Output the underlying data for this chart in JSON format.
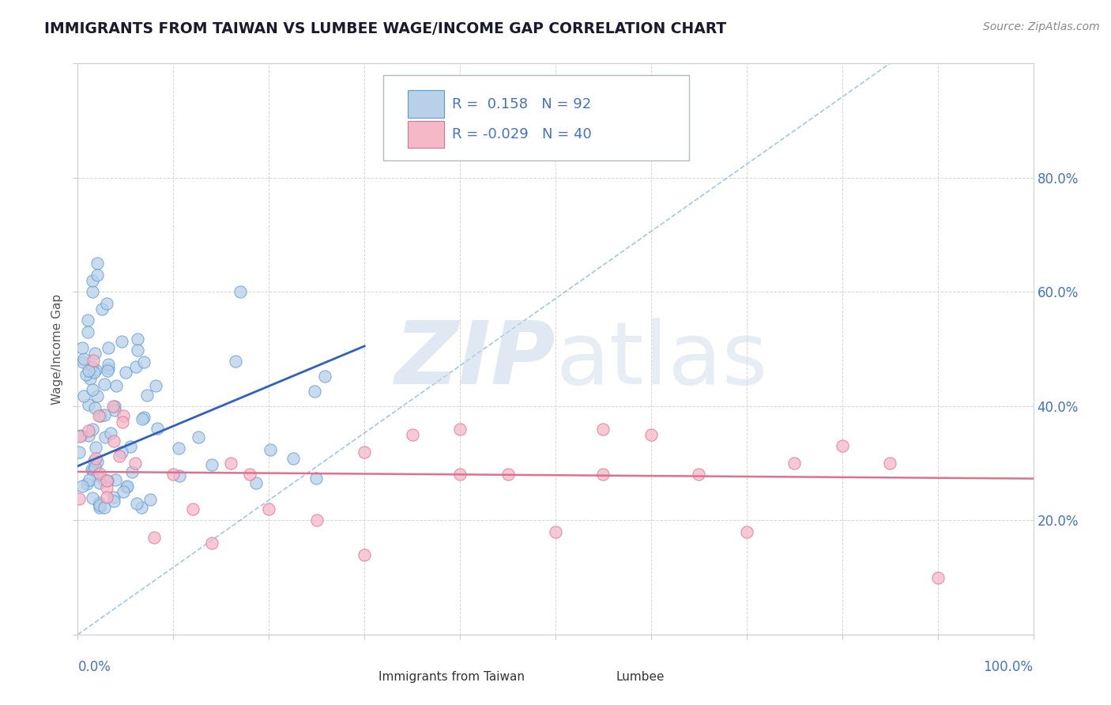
{
  "title": "IMMIGRANTS FROM TAIWAN VS LUMBEE WAGE/INCOME GAP CORRELATION CHART",
  "source": "Source: ZipAtlas.com",
  "ylabel": "Wage/Income Gap",
  "right_yticks": [
    0.2,
    0.4,
    0.6,
    0.8
  ],
  "right_yticklabels": [
    "20.0%",
    "40.0%",
    "60.0%",
    "80.0%"
  ],
  "taiwan_color": "#b8d0e8",
  "taiwan_edge_color": "#5b9bd5",
  "lumbee_color": "#f4b8c8",
  "lumbee_edge_color": "#e07090",
  "taiwan_line_color": "#3060c0",
  "lumbee_line_color": "#e07090",
  "ref_line_color": "#7ab0d8",
  "legend_text_color": "#4472c4",
  "taiwan_R": 0.158,
  "taiwan_N": 92,
  "lumbee_R": -0.029,
  "lumbee_N": 40,
  "background_color": "#ffffff",
  "grid_color": "#cccccc",
  "title_color": "#1a1a2e",
  "watermark_color": "#c8d8ea",
  "xlim": [
    0.0,
    1.0
  ],
  "ylim": [
    0.0,
    1.0
  ]
}
